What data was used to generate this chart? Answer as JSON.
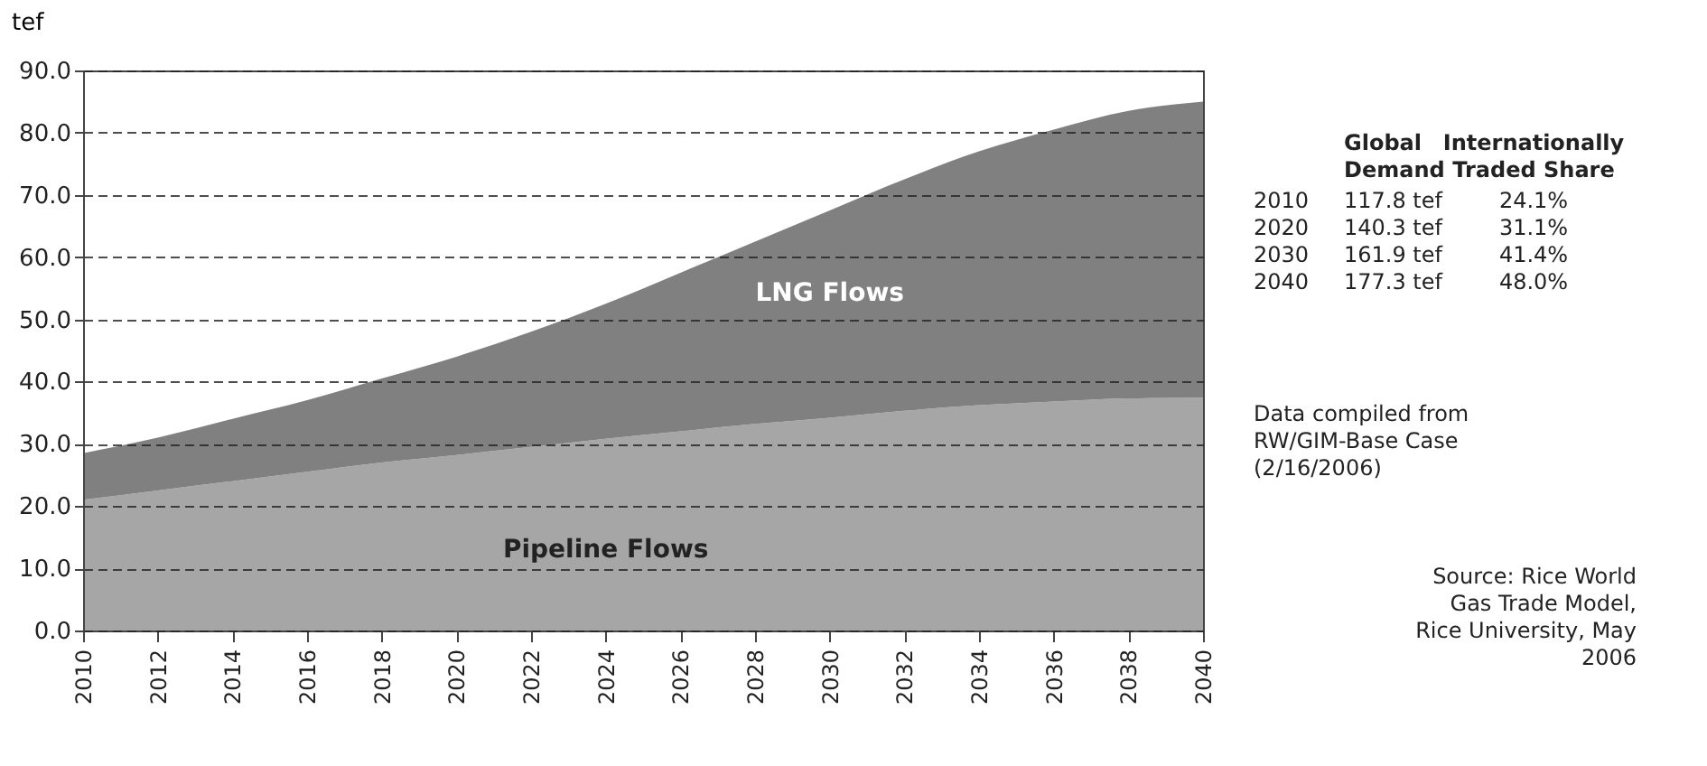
{
  "chart_data": {
    "type": "area",
    "stacked": true,
    "ylabel": "tef",
    "x": [
      2010,
      2012,
      2014,
      2016,
      2018,
      2020,
      2022,
      2024,
      2026,
      2028,
      2030,
      2032,
      2034,
      2036,
      2038,
      2040
    ],
    "series": [
      {
        "name": "Pipeline Flows",
        "color": "#a6a6a6",
        "values": [
          21,
          22.5,
          24,
          25.5,
          27,
          28.2,
          29.5,
          30.8,
          32,
          33.2,
          34.2,
          35.3,
          36.2,
          36.8,
          37.3,
          37.4
        ]
      },
      {
        "name": "LNG Flows",
        "color": "#808080",
        "values": [
          7.5,
          8.5,
          10,
          11.5,
          13.5,
          15.8,
          18.5,
          21.7,
          25.5,
          29.3,
          33.3,
          37.2,
          40.8,
          43.7,
          46.2,
          47.6
        ]
      }
    ],
    "xlim": [
      2010,
      2040
    ],
    "xticks": [
      2010,
      2012,
      2014,
      2016,
      2018,
      2020,
      2022,
      2024,
      2026,
      2028,
      2030,
      2032,
      2034,
      2036,
      2038,
      2040
    ],
    "ylim": [
      0,
      90
    ],
    "yticks": [
      {
        "value": 0,
        "label": "0.0"
      },
      {
        "value": 10,
        "label": "10.0"
      },
      {
        "value": 20,
        "label": "20.0"
      },
      {
        "value": 30,
        "label": "30.0"
      },
      {
        "value": 40,
        "label": "40.0"
      },
      {
        "value": 50,
        "label": "50.0"
      },
      {
        "value": 60,
        "label": "60.0"
      },
      {
        "value": 70,
        "label": "70.0"
      },
      {
        "value": 80,
        "label": "80.0"
      },
      {
        "value": 90,
        "label": "90.0"
      }
    ],
    "grid": "y",
    "legend": false,
    "annotations": [
      "Global Demand",
      "Internationally Traded Share",
      "2010",
      "117.8 tef",
      "24.1%",
      "2020",
      "140.3 tef",
      "31.1%",
      "2030",
      "161.9 tef",
      "41.4%",
      "2040",
      "177.3 tef",
      "48.0%",
      "Data compiled from RW/GIM-Base Case (2/16/2006)",
      "Source: Rice World Gas Trade Model, Rice University, May 2006"
    ]
  }
}
